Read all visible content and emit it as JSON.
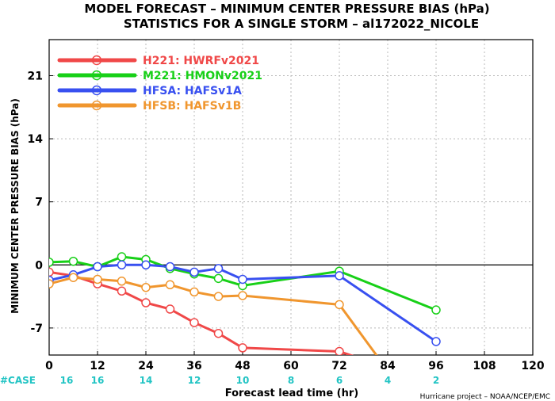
{
  "chart_data": {
    "type": "line",
    "title": "MODEL FORECAST – MINIMUM CENTER PRESSURE BIAS (hPa)",
    "subtitle": "STATISTICS FOR A SINGLE STORM – al172022_NICOLE",
    "ylabel": "MINIMUM CENTER PRESSURE BIAS (hPa)",
    "xlabel": "Forecast lead time (hr)",
    "xlim": [
      0,
      120
    ],
    "ylim": [
      -10,
      25
    ],
    "xticks": [
      0,
      12,
      24,
      36,
      48,
      60,
      72,
      84,
      96,
      108,
      120
    ],
    "yticks": [
      -7,
      0,
      7,
      14,
      21
    ],
    "grid": true,
    "legend_position": "top-left",
    "series": [
      {
        "name": "H221: HWRFv2021",
        "color": "#f04848",
        "x": [
          0,
          6,
          12,
          18,
          24,
          30,
          36,
          42,
          48,
          72,
          78
        ],
        "y": [
          -0.8,
          -1.2,
          -2.1,
          -2.9,
          -4.2,
          -4.9,
          -6.4,
          -7.6,
          -9.2,
          -9.6,
          -10.5
        ]
      },
      {
        "name": "M221: HMONv2021",
        "color": "#18d018",
        "x": [
          0,
          6,
          12,
          18,
          24,
          30,
          36,
          42,
          48,
          72,
          96
        ],
        "y": [
          0.3,
          0.4,
          -0.2,
          0.9,
          0.6,
          -0.4,
          -1.0,
          -1.5,
          -2.3,
          -0.7,
          -5.0
        ]
      },
      {
        "name": "HFSA: HAFSv1A",
        "color": "#3850f0",
        "x": [
          0,
          6,
          12,
          18,
          24,
          30,
          36,
          42,
          48,
          72,
          96
        ],
        "y": [
          -1.7,
          -1.1,
          -0.2,
          0.0,
          0.0,
          -0.2,
          -0.8,
          -0.4,
          -1.6,
          -1.2,
          -8.5
        ]
      },
      {
        "name": "HFSB: HAFSv1B",
        "color": "#f0962e",
        "x": [
          0,
          6,
          12,
          18,
          24,
          30,
          36,
          42,
          48,
          72,
          82
        ],
        "y": [
          -2.1,
          -1.4,
          -1.6,
          -1.8,
          -2.5,
          -2.2,
          -3.0,
          -3.5,
          -3.4,
          -4.4,
          -10.5
        ]
      }
    ],
    "cases": {
      "label": "#CASE",
      "x": [
        0,
        12,
        24,
        36,
        48,
        60,
        72,
        84,
        96
      ],
      "counts": [
        "16",
        "16",
        "14",
        "12",
        "10",
        "8",
        "6",
        "4",
        "2"
      ],
      "color": "#22c4c4"
    },
    "footer": "Hurricane project – NOAA/NCEP/EMC"
  }
}
